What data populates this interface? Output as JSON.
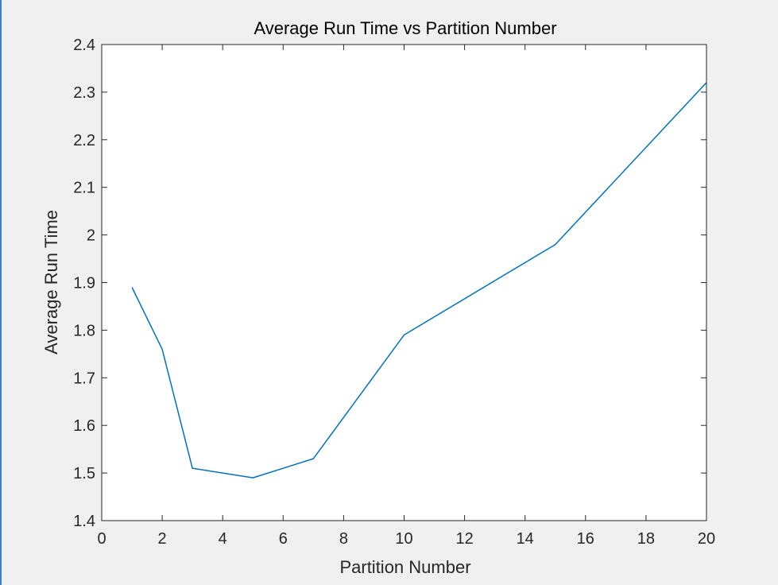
{
  "chart_data": {
    "type": "line",
    "title": "Average Run Time vs Partition Number",
    "xlabel": "Partition Number",
    "ylabel": "Average Run Time",
    "xlim": [
      0,
      20
    ],
    "ylim": [
      1.4,
      2.4
    ],
    "x_ticks": [
      0,
      2,
      4,
      6,
      8,
      10,
      12,
      14,
      16,
      18,
      20
    ],
    "x_tick_labels": [
      "0",
      "2",
      "4",
      "6",
      "8",
      "10",
      "12",
      "14",
      "16",
      "18",
      "20"
    ],
    "y_ticks": [
      1.4,
      1.5,
      1.6,
      1.7,
      1.8,
      1.9,
      2.0,
      2.1,
      2.2,
      2.3,
      2.4
    ],
    "y_tick_labels": [
      "1.4",
      "1.5",
      "1.6",
      "1.7",
      "1.8",
      "1.9",
      "2",
      "2.1",
      "2.2",
      "2.3",
      "2.4"
    ],
    "grid": false,
    "legend": "none",
    "series": [
      {
        "color": "#0072bd",
        "x": [
          1,
          2,
          3,
          5,
          7,
          10,
          15,
          20
        ],
        "y": [
          1.89,
          1.76,
          1.51,
          1.49,
          1.53,
          1.79,
          1.98,
          2.32
        ]
      }
    ]
  }
}
